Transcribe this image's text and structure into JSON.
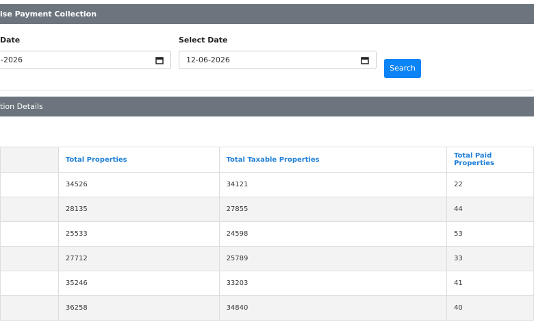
{
  "header": {
    "title": "ise Payment Collection"
  },
  "form": {
    "from_label": "Date",
    "from_value": "-2026",
    "to_label": "Select Date",
    "to_value": "12-06-2026",
    "button": "Search"
  },
  "details": {
    "title": "tion Details"
  },
  "table": {
    "columns": [
      "Total Properties",
      "Total Taxable Properties",
      "Total Paid Properties"
    ],
    "rows": [
      [
        "34526",
        "34121",
        "22"
      ],
      [
        "28135",
        "27855",
        "44"
      ],
      [
        "25533",
        "24598",
        "53"
      ],
      [
        "27712",
        "25789",
        "33"
      ],
      [
        "35246",
        "33203",
        "41"
      ],
      [
        "36258",
        "34840",
        "40"
      ]
    ]
  }
}
